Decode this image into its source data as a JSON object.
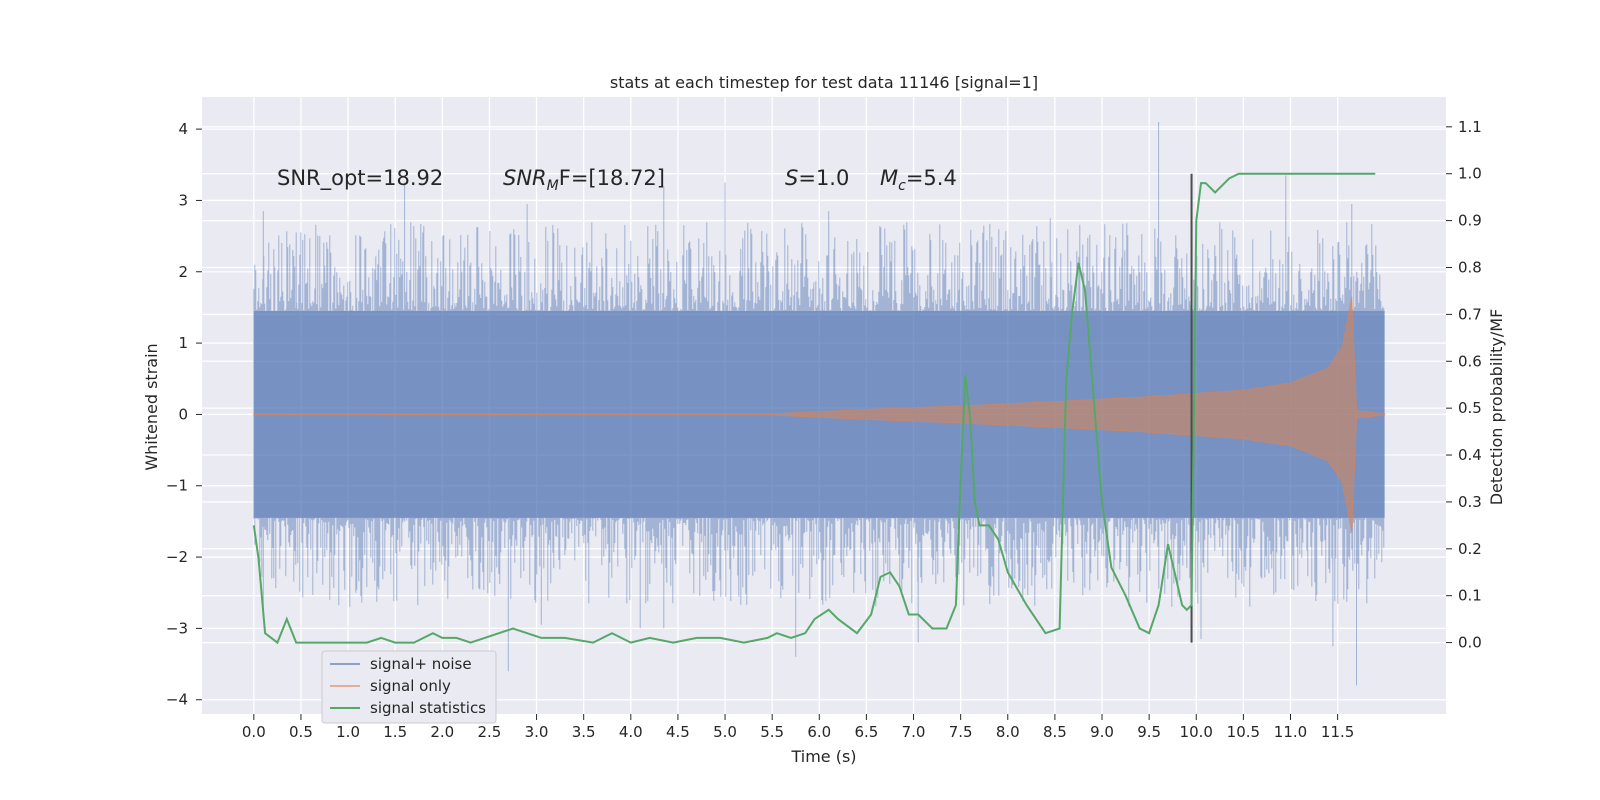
{
  "chart_data": {
    "type": "line",
    "title": "stats at each timestep for test data 11146 [signal=1]",
    "xlabel": "Time (s)",
    "ylabel": "Whitened strain",
    "y2label": "Detection probability/MF",
    "xlim": [
      -0.55,
      12.65
    ],
    "ylim": [
      -4.2,
      4.45
    ],
    "y2lim": [
      -0.1523,
      1.1636
    ],
    "x_ticks": [
      "0.0",
      "0.5",
      "1.0",
      "1.5",
      "2.0",
      "2.5",
      "3.0",
      "3.5",
      "4.0",
      "4.5",
      "5.0",
      "5.5",
      "6.0",
      "6.5",
      "7.0",
      "7.5",
      "8.0",
      "8.5",
      "9.0",
      "9.5",
      "10.0",
      "10.5",
      "11.0",
      "11.5"
    ],
    "y_ticks": [
      "4",
      "3",
      "2",
      "1",
      "0",
      "−1",
      "−2",
      "−3",
      "−4"
    ],
    "y2_ticks": [
      "1.1",
      "1.0",
      "0.9",
      "0.8",
      "0.7",
      "0.6",
      "0.5",
      "0.4",
      "0.3",
      "0.2",
      "0.1",
      "0.0"
    ],
    "annotations": {
      "snr_opt": "SNR_opt=18.92",
      "snr_mf_sym": "SNR",
      "snr_mf_sub": "M",
      "snr_mf_rest": "F=[18.72]",
      "s_sym": "S",
      "s_rest": "=1.0",
      "mc_sym": "M",
      "mc_sub": "c",
      "mc_rest": "=5.4"
    },
    "marker_time": 9.95,
    "series": [
      {
        "name": "signal+ noise",
        "color": "#4c72b0",
        "t_range": [
          0.0,
          12.0
        ],
        "band": [
          -1.45,
          1.45
        ],
        "spikes": [
          [
            0.1,
            2.85
          ],
          [
            0.45,
            2.55
          ],
          [
            1.6,
            3.25
          ],
          [
            2.9,
            2.95
          ],
          [
            4.35,
            3.2
          ],
          [
            5.0,
            3.25
          ],
          [
            6.1,
            2.85
          ],
          [
            8.45,
            2.75
          ],
          [
            9.6,
            4.1
          ],
          [
            10.95,
            3.35
          ],
          [
            11.65,
            2.95
          ],
          [
            0.1,
            -2.8
          ],
          [
            2.7,
            -3.6
          ],
          [
            3.05,
            -2.95
          ],
          [
            4.1,
            -3.0
          ],
          [
            4.35,
            -3.0
          ],
          [
            5.75,
            -3.4
          ],
          [
            7.05,
            -3.2
          ],
          [
            10.05,
            -3.15
          ],
          [
            11.45,
            -3.25
          ],
          [
            11.7,
            -3.8
          ]
        ]
      },
      {
        "name": "signal only",
        "color": "#dd8452",
        "envelope": [
          [
            0.0,
            0.005
          ],
          [
            5.5,
            0.01
          ],
          [
            6.5,
            0.07
          ],
          [
            7.5,
            0.12
          ],
          [
            8.5,
            0.18
          ],
          [
            9.5,
            0.25
          ],
          [
            10.5,
            0.34
          ],
          [
            11.0,
            0.44
          ],
          [
            11.4,
            0.65
          ],
          [
            11.55,
            0.95
          ],
          [
            11.65,
            1.65
          ],
          [
            11.7,
            0.05
          ],
          [
            12.0,
            0.01
          ]
        ]
      },
      {
        "name": "signal statistics",
        "color": "#55a868",
        "x": [
          0.0,
          0.05,
          0.12,
          0.25,
          0.35,
          0.45,
          0.55,
          0.75,
          1.0,
          1.2,
          1.35,
          1.5,
          1.7,
          1.9,
          2.0,
          2.15,
          2.3,
          2.45,
          2.6,
          2.75,
          2.9,
          3.05,
          3.3,
          3.6,
          3.8,
          4.0,
          4.2,
          4.45,
          4.7,
          4.95,
          5.2,
          5.45,
          5.55,
          5.7,
          5.85,
          5.95,
          6.1,
          6.2,
          6.4,
          6.55,
          6.65,
          6.75,
          6.85,
          6.95,
          7.05,
          7.2,
          7.35,
          7.45,
          7.5,
          7.55,
          7.6,
          7.65,
          7.7,
          7.8,
          7.9,
          8.0,
          8.2,
          8.4,
          8.55,
          8.62,
          8.68,
          8.75,
          8.82,
          8.9,
          9.0,
          9.1,
          9.25,
          9.4,
          9.5,
          9.6,
          9.7,
          9.77,
          9.85,
          9.9,
          9.95,
          10.0,
          10.05,
          10.1,
          10.2,
          10.35,
          10.45,
          10.55,
          10.7,
          10.9,
          11.2,
          11.6,
          11.9
        ],
        "y": [
          0.25,
          0.18,
          0.02,
          0.0,
          0.05,
          0.0,
          0.0,
          0.0,
          0.0,
          0.0,
          0.01,
          0.0,
          0.0,
          0.02,
          0.01,
          0.01,
          0.0,
          0.01,
          0.02,
          0.03,
          0.02,
          0.01,
          0.01,
          0.0,
          0.02,
          0.0,
          0.01,
          0.0,
          0.01,
          0.01,
          0.0,
          0.01,
          0.02,
          0.01,
          0.02,
          0.05,
          0.07,
          0.05,
          0.02,
          0.06,
          0.14,
          0.15,
          0.12,
          0.06,
          0.06,
          0.03,
          0.03,
          0.08,
          0.35,
          0.57,
          0.48,
          0.3,
          0.25,
          0.25,
          0.22,
          0.15,
          0.08,
          0.02,
          0.03,
          0.56,
          0.7,
          0.81,
          0.75,
          0.55,
          0.3,
          0.16,
          0.1,
          0.03,
          0.02,
          0.08,
          0.21,
          0.15,
          0.08,
          0.07,
          0.08,
          0.9,
          0.98,
          0.98,
          0.96,
          0.99,
          1.0,
          1.0,
          1.0,
          1.0,
          1.0,
          1.0,
          1.0
        ]
      }
    ],
    "legend_position": "bottom-left"
  }
}
